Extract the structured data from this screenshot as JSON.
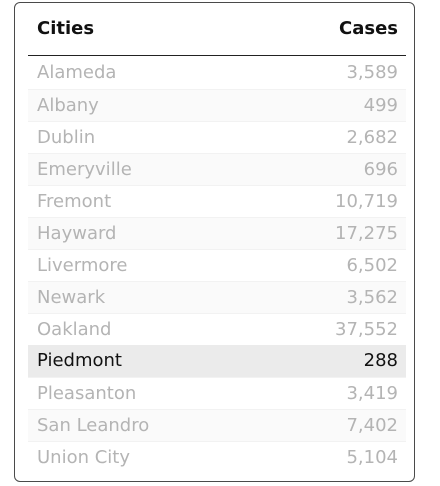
{
  "table": {
    "columns": {
      "city": "Cities",
      "cases": "Cases"
    },
    "rows": [
      {
        "city": "Alameda",
        "cases": "3,589"
      },
      {
        "city": "Albany",
        "cases": "499"
      },
      {
        "city": "Dublin",
        "cases": "2,682"
      },
      {
        "city": "Emeryville",
        "cases": "696"
      },
      {
        "city": "Fremont",
        "cases": "10,719"
      },
      {
        "city": "Hayward",
        "cases": "17,275"
      },
      {
        "city": "Livermore",
        "cases": "6,502"
      },
      {
        "city": "Newark",
        "cases": "3,562"
      },
      {
        "city": "Oakland",
        "cases": "37,552"
      },
      {
        "city": "Piedmont",
        "cases": "288"
      },
      {
        "city": "Pleasanton",
        "cases": "3,419"
      },
      {
        "city": "San Leandro",
        "cases": "7,402"
      },
      {
        "city": "Union City",
        "cases": "5,104"
      }
    ],
    "highlighted_row": "Piedmont"
  },
  "colors": {
    "dim_text": "#b4b4b4",
    "highlight_text": "#111111",
    "highlight_bg": "#ebebeb",
    "border": "#4a4a4a"
  }
}
